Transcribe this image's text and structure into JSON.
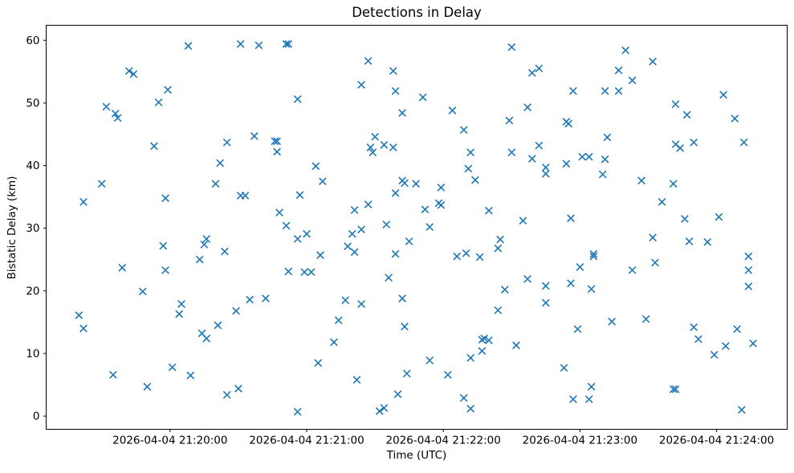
{
  "chart_data": {
    "type": "scatter",
    "title": "Detections in Delay",
    "xlabel": "Time (UTC)",
    "ylabel": "Bistatic Delay (km)",
    "marker": "x",
    "marker_color": "#1f77b4",
    "x_encoding": "seconds relative to 2026-04-04 21:20:00 (from x tick labels)",
    "xlim": [
      -54.4,
      271.0
    ],
    "ylim": [
      -2.1,
      62.4
    ],
    "grid": false,
    "legend": null,
    "x_ticks": [
      {
        "t": 0,
        "label": "2026-04-04 21:20:00"
      },
      {
        "t": 60,
        "label": "2026-04-04 21:21:00"
      },
      {
        "t": 120,
        "label": "2026-04-04 21:22:00"
      },
      {
        "t": 180,
        "label": "2026-04-04 21:23:00"
      },
      {
        "t": 240,
        "label": "2026-04-04 21:24:00"
      }
    ],
    "y_ticks": [
      0,
      10,
      20,
      30,
      40,
      50,
      60
    ],
    "points": [
      [
        8,
        59.1
      ],
      [
        31,
        59.4
      ],
      [
        39,
        59.2
      ],
      [
        51,
        59.4
      ],
      [
        52,
        59.4
      ],
      [
        -18,
        55.1
      ],
      [
        -16,
        54.6
      ],
      [
        -1,
        52.1
      ],
      [
        -5,
        50.1
      ],
      [
        -28,
        49.4
      ],
      [
        -24,
        48.3
      ],
      [
        -23,
        47.6
      ],
      [
        37,
        44.7
      ],
      [
        25,
        43.7
      ],
      [
        46,
        43.9
      ],
      [
        47,
        43.9
      ],
      [
        47,
        42.2
      ],
      [
        -7,
        43.1
      ],
      [
        150,
        58.9
      ],
      [
        87,
        56.7
      ],
      [
        98,
        55.1
      ],
      [
        159,
        54.8
      ],
      [
        162,
        55.5
      ],
      [
        84,
        52.9
      ],
      [
        99,
        51.9
      ],
      [
        111,
        50.9
      ],
      [
        56,
        50.6
      ],
      [
        124,
        48.8
      ],
      [
        102,
        48.4
      ],
      [
        157,
        49.3
      ],
      [
        149,
        47.2
      ],
      [
        129,
        45.7
      ],
      [
        90,
        44.6
      ],
      [
        88,
        42.9
      ],
      [
        89,
        42.1
      ],
      [
        94,
        43.3
      ],
      [
        98,
        42.9
      ],
      [
        132,
        42.1
      ],
      [
        150,
        42.1
      ],
      [
        159,
        41.1
      ],
      [
        200,
        58.4
      ],
      [
        212,
        56.6
      ],
      [
        197,
        55.2
      ],
      [
        203,
        53.6
      ],
      [
        177,
        51.9
      ],
      [
        191,
        51.9
      ],
      [
        197,
        51.9
      ],
      [
        243,
        51.3
      ],
      [
        222,
        49.8
      ],
      [
        227,
        48.1
      ],
      [
        248,
        47.5
      ],
      [
        174,
        47.0
      ],
      [
        175,
        46.7
      ],
      [
        192,
        44.5
      ],
      [
        230,
        43.7
      ],
      [
        252,
        43.7
      ],
      [
        222,
        43.4
      ],
      [
        224,
        42.8
      ],
      [
        162,
        43.2
      ],
      [
        22,
        40.4
      ],
      [
        -30,
        37.1
      ],
      [
        20,
        37.1
      ],
      [
        -38,
        34.2
      ],
      [
        -2,
        34.8
      ],
      [
        31,
        35.2
      ],
      [
        33,
        35.2
      ],
      [
        48,
        32.5
      ],
      [
        51,
        30.4
      ],
      [
        16,
        28.3
      ],
      [
        15,
        27.4
      ],
      [
        -3,
        27.2
      ],
      [
        24,
        26.3
      ],
      [
        13,
        25.0
      ],
      [
        -21,
        23.7
      ],
      [
        -2,
        23.3
      ],
      [
        52,
        23.1
      ],
      [
        -12,
        19.9
      ],
      [
        64,
        39.9
      ],
      [
        67,
        37.5
      ],
      [
        57,
        35.3
      ],
      [
        102,
        37.6
      ],
      [
        103,
        37.2
      ],
      [
        108,
        37.1
      ],
      [
        99,
        35.6
      ],
      [
        119,
        36.5
      ],
      [
        118,
        34.0
      ],
      [
        119,
        33.7
      ],
      [
        112,
        33.0
      ],
      [
        131,
        39.5
      ],
      [
        134,
        37.7
      ],
      [
        140,
        32.8
      ],
      [
        155,
        31.2
      ],
      [
        81,
        32.9
      ],
      [
        87,
        33.8
      ],
      [
        95,
        30.6
      ],
      [
        114,
        30.2
      ],
      [
        105,
        27.9
      ],
      [
        80,
        29.1
      ],
      [
        84,
        29.8
      ],
      [
        56,
        28.3
      ],
      [
        60,
        29.1
      ],
      [
        78,
        27.1
      ],
      [
        81,
        26.2
      ],
      [
        66,
        25.7
      ],
      [
        99,
        25.9
      ],
      [
        126,
        25.5
      ],
      [
        130,
        26.0
      ],
      [
        136,
        25.4
      ],
      [
        145,
        28.2
      ],
      [
        144,
        26.8
      ],
      [
        59,
        23.0
      ],
      [
        62,
        23.0
      ],
      [
        96,
        22.1
      ],
      [
        157,
        21.9
      ],
      [
        147,
        20.2
      ],
      [
        181,
        41.4
      ],
      [
        184,
        41.4
      ],
      [
        191,
        41.0
      ],
      [
        165,
        39.7
      ],
      [
        165,
        38.7
      ],
      [
        174,
        40.3
      ],
      [
        190,
        38.6
      ],
      [
        207,
        37.6
      ],
      [
        221,
        37.1
      ],
      [
        216,
        34.2
      ],
      [
        176,
        31.6
      ],
      [
        226,
        31.5
      ],
      [
        241,
        31.8
      ],
      [
        212,
        28.5
      ],
      [
        228,
        27.9
      ],
      [
        236,
        27.8
      ],
      [
        186,
        25.9
      ],
      [
        186,
        25.5
      ],
      [
        180,
        23.8
      ],
      [
        203,
        23.3
      ],
      [
        213,
        24.5
      ],
      [
        254,
        25.5
      ],
      [
        254,
        23.3
      ],
      [
        254,
        20.7
      ],
      [
        165,
        20.8
      ],
      [
        176,
        21.2
      ],
      [
        185,
        20.3
      ],
      [
        -40,
        16.1
      ],
      [
        -38,
        14.0
      ],
      [
        5,
        17.9
      ],
      [
        4,
        16.3
      ],
      [
        35,
        18.6
      ],
      [
        42,
        18.8
      ],
      [
        29,
        16.8
      ],
      [
        21,
        14.5
      ],
      [
        14,
        13.2
      ],
      [
        16,
        12.4
      ],
      [
        1,
        7.8
      ],
      [
        -25,
        6.6
      ],
      [
        -10,
        4.7
      ],
      [
        9,
        6.5
      ],
      [
        25,
        3.4
      ],
      [
        30,
        4.4
      ],
      [
        77,
        18.5
      ],
      [
        84,
        17.9
      ],
      [
        102,
        18.8
      ],
      [
        144,
        16.9
      ],
      [
        74,
        15.3
      ],
      [
        103,
        14.3
      ],
      [
        72,
        11.8
      ],
      [
        65,
        8.5
      ],
      [
        82,
        5.8
      ],
      [
        104,
        6.8
      ],
      [
        114,
        8.9
      ],
      [
        122,
        6.6
      ],
      [
        100,
        3.5
      ],
      [
        92,
        0.8
      ],
      [
        94,
        1.3
      ],
      [
        56,
        0.7
      ],
      [
        137,
        12.2
      ],
      [
        138,
        12.4
      ],
      [
        140,
        12.1
      ],
      [
        137,
        10.4
      ],
      [
        152,
        11.3
      ],
      [
        132,
        9.3
      ],
      [
        129,
        2.9
      ],
      [
        132,
        1.2
      ],
      [
        165,
        18.1
      ],
      [
        179,
        13.9
      ],
      [
        194,
        15.1
      ],
      [
        209,
        15.5
      ],
      [
        230,
        14.2
      ],
      [
        232,
        12.3
      ],
      [
        239,
        9.8
      ],
      [
        244,
        11.2
      ],
      [
        249,
        13.9
      ],
      [
        256,
        11.6
      ],
      [
        173,
        7.7
      ],
      [
        185,
        4.7
      ],
      [
        177,
        2.7
      ],
      [
        184,
        2.7
      ],
      [
        221,
        4.3
      ],
      [
        222,
        4.3
      ],
      [
        251,
        1.0
      ]
    ]
  }
}
